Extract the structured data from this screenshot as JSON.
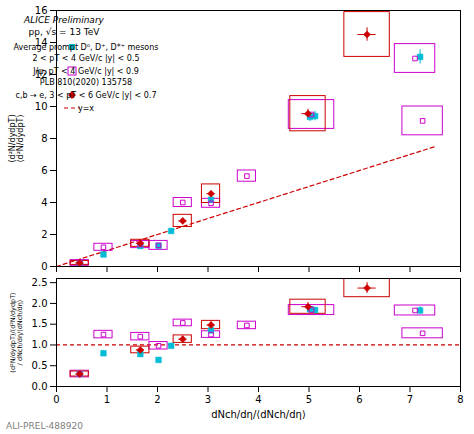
{
  "chart_data": [
    {
      "type": "scatter",
      "annotations": [
        "ALICE Preliminary",
        "pp, √s = 13 TeV"
      ],
      "ylabel": "(d²N/dydpT)\n⟨d²N/dydpT⟩",
      "xlim": [
        0,
        8
      ],
      "xticks": [
        0,
        1,
        2,
        3,
        4,
        5,
        6,
        7,
        8
      ],
      "ylim": [
        0,
        16
      ],
      "yticks": [
        0,
        2,
        4,
        6,
        8,
        10,
        12,
        14,
        16
      ],
      "tick_labels": "y",
      "legend": "upper left",
      "series": [
        {
          "name": "Average prompt D⁰, D⁺, D*⁺ mesons",
          "annotation": "2 < pT < 4 GeV/c |y| < 0.5",
          "color": "#00bcd4",
          "marker": "square",
          "x": [
            0.46,
            0.93,
            1.66,
            2.02,
            2.27,
            3.06,
            5.02,
            5.12,
            7.2
          ],
          "values": [
            0.19,
            0.75,
            1.28,
            1.3,
            2.22,
            4.17,
            9.35,
            9.4,
            13.1
          ],
          "yerr": [
            0.04,
            0.06,
            0.07,
            0.08,
            0.12,
            0.18,
            0.3,
            0.3,
            0.45
          ]
        },
        {
          "name": "J/ψ, pT < 4 GeV/c |y| < 0.9",
          "annotation": "PLB 810(2020) 135758",
          "color": "#cc00cc",
          "marker": "open_square",
          "x": [
            0.46,
            0.93,
            1.66,
            2.02,
            2.5,
            3.06,
            3.77,
            5.05,
            7.1,
            7.25
          ],
          "values": [
            0.22,
            1.2,
            1.37,
            1.32,
            4.0,
            3.95,
            5.65,
            9.5,
            13.0,
            9.1
          ],
          "box_xerr": [
            0.18,
            0.18,
            0.18,
            0.18,
            0.18,
            0.18,
            0.18,
            0.45,
            0.4,
            0.4
          ],
          "box_yerr": [
            0.18,
            0.22,
            0.22,
            0.28,
            0.28,
            0.28,
            0.35,
            0.9,
            0.9,
            0.9
          ]
        },
        {
          "name": "c,b → e, 3 < pT < 6 GeV/c |y| < 0.7",
          "color": "#cc0000",
          "marker": "diamond",
          "x": [
            0.46,
            1.66,
            2.5,
            3.06,
            4.98,
            6.15
          ],
          "values": [
            0.22,
            1.45,
            2.85,
            4.55,
            9.55,
            14.5
          ],
          "xerr": [
            0.08,
            0.08,
            0.08,
            0.08,
            0.12,
            0.18
          ],
          "yerr": [
            0.04,
            0.08,
            0.1,
            0.15,
            0.28,
            0.42
          ],
          "box_xerr": [
            0.18,
            0.18,
            0.18,
            0.18,
            0.35,
            0.45
          ],
          "box_yerr": [
            0.12,
            0.22,
            0.38,
            0.58,
            1.1,
            1.4
          ]
        },
        {
          "name": "y=x",
          "type": "line",
          "line_style": "dashed",
          "color": "#cc0000",
          "x": [
            0,
            7.5
          ],
          "values": [
            0,
            7.5
          ]
        }
      ]
    },
    {
      "type": "scatter",
      "xlabel": "dNch/dη/⟨dNch/dη⟩",
      "ylabel": "(d²N/dydpT)/⟨d²N/dydpT⟩\n/ dNch/dη/⟨dNch/dη⟩",
      "caption": "ALI-PREL-488920",
      "xlim": [
        0,
        8
      ],
      "xticks": [
        0,
        1,
        2,
        3,
        4,
        5,
        6,
        7,
        8
      ],
      "ylim": [
        0,
        2.6
      ],
      "yticks": [
        {
          "value": 0,
          "label": "0.0"
        },
        0.5,
        {
          "value": 1,
          "label": "1.0"
        },
        1.5,
        {
          "value": 2,
          "label": "2.0"
        },
        2.5
      ],
      "series": [
        {
          "type": "hline",
          "line_style": "dashed",
          "color": "#cc0000",
          "values": [
            1
          ]
        },
        {
          "color": "#00bcd4",
          "marker": "square",
          "x": [
            0.46,
            0.93,
            1.66,
            2.02,
            2.27,
            3.06,
            5.02,
            5.12,
            7.2
          ],
          "values": [
            0.3,
            0.8,
            0.78,
            0.64,
            0.98,
            1.35,
            1.86,
            1.84,
            1.83
          ],
          "yerr": [
            0.06,
            0.06,
            0.05,
            0.05,
            0.06,
            0.06,
            0.07,
            0.07,
            0.09
          ]
        },
        {
          "color": "#cc00cc",
          "marker": "open_square",
          "x": [
            0.46,
            0.93,
            1.66,
            2.02,
            2.5,
            3.06,
            3.77,
            5.05,
            7.1,
            7.25
          ],
          "values": [
            0.3,
            1.25,
            1.2,
            0.98,
            1.53,
            1.25,
            1.47,
            1.84,
            1.83,
            1.28
          ],
          "box_xerr": [
            0.18,
            0.18,
            0.18,
            0.18,
            0.18,
            0.18,
            0.18,
            0.45,
            0.4,
            0.4
          ],
          "box_yerr": [
            0.08,
            0.09,
            0.09,
            0.09,
            0.08,
            0.08,
            0.09,
            0.12,
            0.12,
            0.12
          ]
        },
        {
          "color": "#cc0000",
          "marker": "diamond",
          "x": [
            0.46,
            1.66,
            2.5,
            3.06,
            4.98,
            6.15
          ],
          "values": [
            0.3,
            0.88,
            1.14,
            1.48,
            1.92,
            2.37
          ],
          "xerr": [
            0.08,
            0.08,
            0.08,
            0.08,
            0.12,
            0.18
          ],
          "yerr": [
            0.04,
            0.06,
            0.07,
            0.08,
            0.1,
            0.13
          ],
          "box_xerr": [
            0.18,
            0.18,
            0.18,
            0.18,
            0.35,
            0.45
          ],
          "box_yerr": [
            0.06,
            0.08,
            0.09,
            0.1,
            0.17,
            0.22
          ]
        }
      ]
    }
  ]
}
